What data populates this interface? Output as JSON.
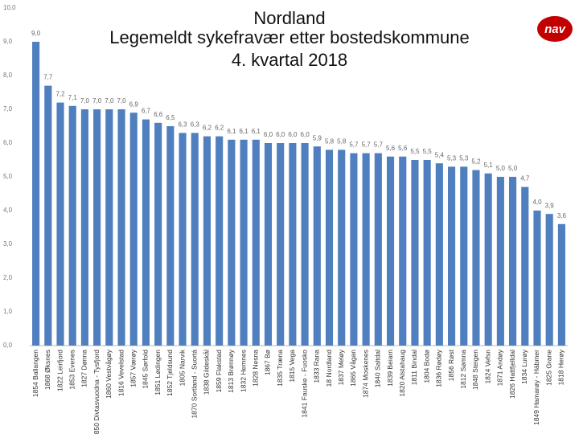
{
  "chart_data": {
    "type": "bar",
    "title": [
      "Nordland",
      "Legemeldt sykefravær etter bostedskommune",
      "4. kvartal 2018"
    ],
    "logo": "nav",
    "categories": [
      "1854 Ballangen",
      "1868 Øksnes",
      "1822 Leirfjord",
      "1853 Evenes",
      "1827 Dønna",
      "1850 Divtasvuodna - Tysfjord",
      "1860 Vestvågøy",
      "1816 Vevelstad",
      "1857 Værøy",
      "1845 Sørfold",
      "1851 Lødingen",
      "1852 Tjeldsund",
      "1805 Narvik",
      "1870 Sortland - Suortá",
      "1838 Gildeskål",
      "1859 Flakstad",
      "1813 Brønnøy",
      "1832 Hemnes",
      "1828 Nesna",
      "1867 Bø",
      "1835 Træna",
      "1815 Vega",
      "1841 Fauske - Fuosko",
      "1833 Rana",
      "18 Nordland",
      "1837 Meløy",
      "1865 Vågan",
      "1874 Moskenes",
      "1840 Saltdal",
      "1839 Beiarn",
      "1820 Alstahaug",
      "1811 Bindal",
      "1804 Bodø",
      "1836 Rødøy",
      "1856 Røst",
      "1812 Sømna",
      "1848 Steigen",
      "1824 Vefsn",
      "1871 Andøy",
      "1826 Hattfjelldal",
      "1834 Lurøy",
      "1849 Hamarøy - Hábmer",
      "1825 Grane",
      "1818 Herøy"
    ],
    "values": [
      9.0,
      7.7,
      7.2,
      7.1,
      7.0,
      7.0,
      7.0,
      7.0,
      6.9,
      6.7,
      6.6,
      6.5,
      6.3,
      6.3,
      6.2,
      6.2,
      6.1,
      6.1,
      6.1,
      6.0,
      6.0,
      6.0,
      6.0,
      5.9,
      5.8,
      5.8,
      5.7,
      5.7,
      5.7,
      5.6,
      5.6,
      5.5,
      5.5,
      5.4,
      5.3,
      5.3,
      5.2,
      5.1,
      5.0,
      5.0,
      4.7,
      4.0,
      3.9,
      3.6
    ],
    "value_labels": [
      "9,0",
      "7,7",
      "7,2",
      "7,1",
      "7,0",
      "7,0",
      "7,0",
      "7,0",
      "6,9",
      "6,7",
      "6,6",
      "6,5",
      "6,3",
      "6,3",
      "6,2",
      "6,2",
      "6,1",
      "6,1",
      "6,1",
      "6,0",
      "6,0",
      "6,0",
      "6,0",
      "5,9",
      "5,8",
      "5,8",
      "5,7",
      "5,7",
      "5,7",
      "5,6",
      "5,6",
      "5,5",
      "5,5",
      "5,4",
      "5,3",
      "5,3",
      "5,2",
      "5,1",
      "5,0",
      "5,0",
      "4,7",
      "4,0",
      "3,9",
      "3,6"
    ],
    "color": "#4f7fbf",
    "ylim": [
      0,
      10
    ],
    "yticks": [
      {
        "value": 0,
        "label": "0,0"
      },
      {
        "value": 1,
        "label": "1,0"
      },
      {
        "value": 2,
        "label": "2,0"
      },
      {
        "value": 3,
        "label": "3,0"
      },
      {
        "value": 4,
        "label": "4,0"
      },
      {
        "value": 5,
        "label": "5,0"
      },
      {
        "value": 6,
        "label": "6,0"
      },
      {
        "value": 7,
        "label": "7,0"
      },
      {
        "value": 8,
        "label": "8,0"
      },
      {
        "value": 9,
        "label": "9,0"
      },
      {
        "value": 10,
        "label": "10,0"
      }
    ],
    "grid": false
  }
}
